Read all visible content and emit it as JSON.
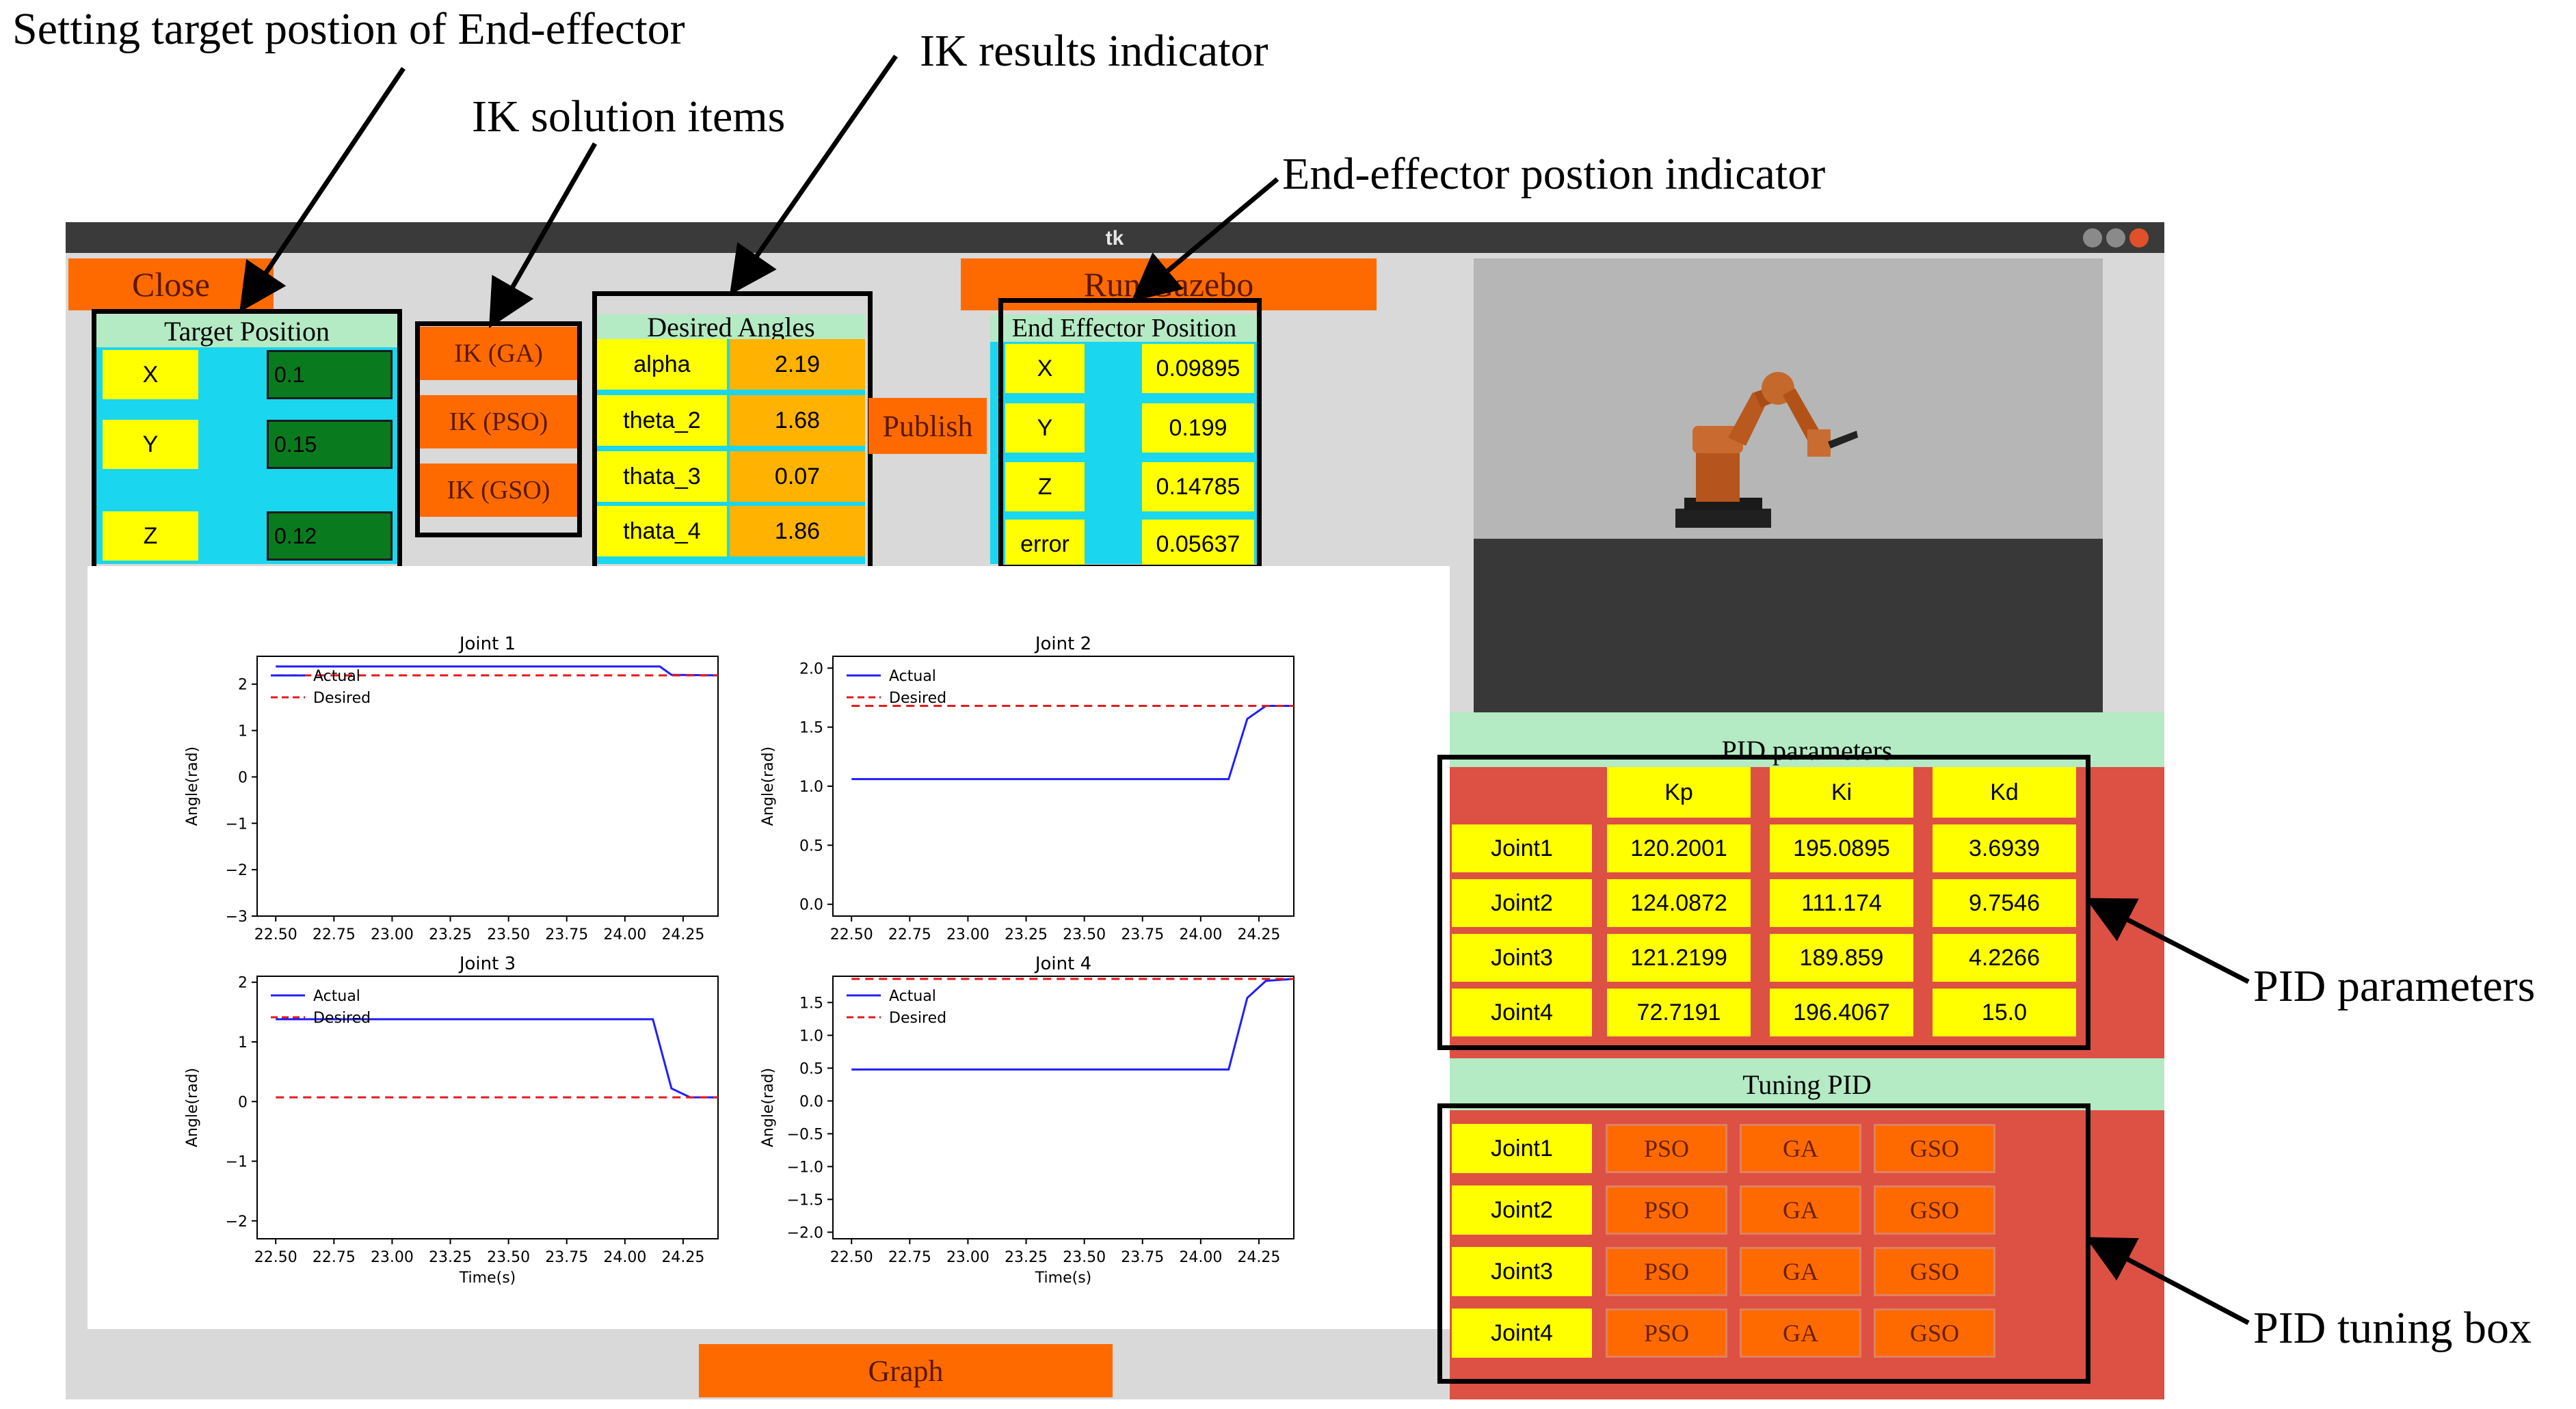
{
  "annotations": {
    "target": "Setting target postion of End-effector",
    "ik_items": "IK solution items",
    "ik_results": "IK results indicator",
    "ee_indicator": "End-effector postion indicator",
    "pid_params": "PID parameters",
    "pid_tuning": "PID tuning box"
  },
  "window": {
    "title": "tk"
  },
  "buttons": {
    "close": "Close",
    "run_gazebo": "Run Gazebo",
    "publish": "Publish",
    "graph": "Graph"
  },
  "target_position": {
    "title": "Target Position",
    "rows": [
      {
        "label": "X",
        "value": "0.1"
      },
      {
        "label": "Y",
        "value": "0.15"
      },
      {
        "label": "Z",
        "value": "0.12"
      }
    ]
  },
  "ik_buttons": [
    "IK (GA)",
    "IK (PSO)",
    "IK (GSO)"
  ],
  "desired_angles": {
    "title": "Desired Angles",
    "rows": [
      {
        "label": "alpha",
        "value": "2.19"
      },
      {
        "label": "theta_2",
        "value": "1.68"
      },
      {
        "label": "thata_3",
        "value": "0.07"
      },
      {
        "label": "thata_4",
        "value": "1.86"
      }
    ]
  },
  "end_effector": {
    "title": "End Effector Position",
    "rows": [
      {
        "label": "X",
        "value": "0.09895"
      },
      {
        "label": "Y",
        "value": "0.199"
      },
      {
        "label": "Z",
        "value": "0.14785"
      },
      {
        "label": "error",
        "value": "0.05637"
      }
    ]
  },
  "pid_parameters": {
    "title": "PID parameters",
    "headers": [
      "Kp",
      "Ki",
      "Kd"
    ],
    "rows": [
      {
        "joint": "Joint1",
        "kp": "120.2001",
        "ki": "195.0895",
        "kd": "3.6939"
      },
      {
        "joint": "Joint2",
        "kp": "124.0872",
        "ki": "111.174",
        "kd": "9.7546"
      },
      {
        "joint": "Joint3",
        "kp": "121.2199",
        "ki": "189.859",
        "kd": "4.2266"
      },
      {
        "joint": "Joint4",
        "kp": "72.7191",
        "ki": "196.4067",
        "kd": "15.0"
      }
    ]
  },
  "tuning_pid": {
    "title": "Tuning PID",
    "joints": [
      "Joint1",
      "Joint2",
      "Joint3",
      "Joint4"
    ],
    "methods": [
      "PSO",
      "GA",
      "GSO"
    ]
  },
  "colors": {
    "orange": "#ff6a00",
    "yellow": "#ffff00",
    "cyan": "#1ad6ee",
    "green_input": "#0a7a1e",
    "pid_bg": "#dd5044",
    "header_green": "#b4eac4"
  },
  "chart_data": [
    {
      "type": "line",
      "title": "Joint 1",
      "xlabel": "",
      "ylabel": "Angle(rad)",
      "xlim": [
        22.42,
        24.4
      ],
      "ylim": [
        -3,
        2.6
      ],
      "xticks": [
        "22.50",
        "22.75",
        "23.00",
        "23.25",
        "23.50",
        "23.75",
        "24.00",
        "24.25"
      ],
      "yticks": [
        "2",
        "1",
        "0",
        "−1",
        "−2",
        "−3"
      ],
      "legend": [
        "Actual",
        "Desired"
      ],
      "series": [
        {
          "name": "Actual",
          "x": [
            22.5,
            24.15,
            24.2,
            24.4
          ],
          "y": [
            2.38,
            2.38,
            2.2,
            2.19
          ]
        },
        {
          "name": "Desired",
          "x": [
            22.5,
            24.4
          ],
          "y": [
            2.19,
            2.19
          ]
        }
      ]
    },
    {
      "type": "line",
      "title": "Joint 2",
      "xlabel": "",
      "ylabel": "Angle(rad)",
      "xlim": [
        22.42,
        24.4
      ],
      "ylim": [
        -0.1,
        2.1
      ],
      "xticks": [
        "22.50",
        "22.75",
        "23.00",
        "23.25",
        "23.50",
        "23.75",
        "24.00",
        "24.25"
      ],
      "yticks": [
        "2.0",
        "1.5",
        "1.0",
        "0.5",
        "0.0"
      ],
      "legend": [
        "Actual",
        "Desired"
      ],
      "series": [
        {
          "name": "Actual",
          "x": [
            22.5,
            24.12,
            24.2,
            24.28,
            24.4
          ],
          "y": [
            1.06,
            1.06,
            1.57,
            1.68,
            1.68
          ]
        },
        {
          "name": "Desired",
          "x": [
            22.5,
            24.4
          ],
          "y": [
            1.68,
            1.68
          ]
        }
      ]
    },
    {
      "type": "line",
      "title": "Joint 3",
      "xlabel": "Time(s)",
      "ylabel": "Angle(rad)",
      "xlim": [
        22.42,
        24.4
      ],
      "ylim": [
        -2.3,
        2.1
      ],
      "xticks": [
        "22.50",
        "22.75",
        "23.00",
        "23.25",
        "23.50",
        "23.75",
        "24.00",
        "24.25"
      ],
      "yticks": [
        "2",
        "1",
        "0",
        "−1",
        "−2"
      ],
      "legend": [
        "Actual",
        "Desired"
      ],
      "series": [
        {
          "name": "Actual",
          "x": [
            22.5,
            24.12,
            24.2,
            24.28,
            24.4
          ],
          "y": [
            1.38,
            1.38,
            0.22,
            0.07,
            0.07
          ]
        },
        {
          "name": "Desired",
          "x": [
            22.5,
            24.4
          ],
          "y": [
            0.07,
            0.07
          ]
        }
      ]
    },
    {
      "type": "line",
      "title": "Joint 4",
      "xlabel": "Time(s)",
      "ylabel": "Angle(rad)",
      "xlim": [
        22.42,
        24.4
      ],
      "ylim": [
        -2.1,
        1.9
      ],
      "xticks": [
        "22.50",
        "22.75",
        "23.00",
        "23.25",
        "23.50",
        "23.75",
        "24.00",
        "24.25"
      ],
      "yticks": [
        "1.5",
        "1.0",
        "0.5",
        "0.0",
        "−0.5",
        "−1.0",
        "−1.5",
        "−2.0"
      ],
      "legend": [
        "Actual",
        "Desired"
      ],
      "series": [
        {
          "name": "Actual",
          "x": [
            22.5,
            24.12,
            24.2,
            24.28,
            24.4
          ],
          "y": [
            0.48,
            0.48,
            1.57,
            1.83,
            1.86
          ]
        },
        {
          "name": "Desired",
          "x": [
            22.5,
            24.4
          ],
          "y": [
            1.86,
            1.86
          ]
        }
      ]
    }
  ]
}
